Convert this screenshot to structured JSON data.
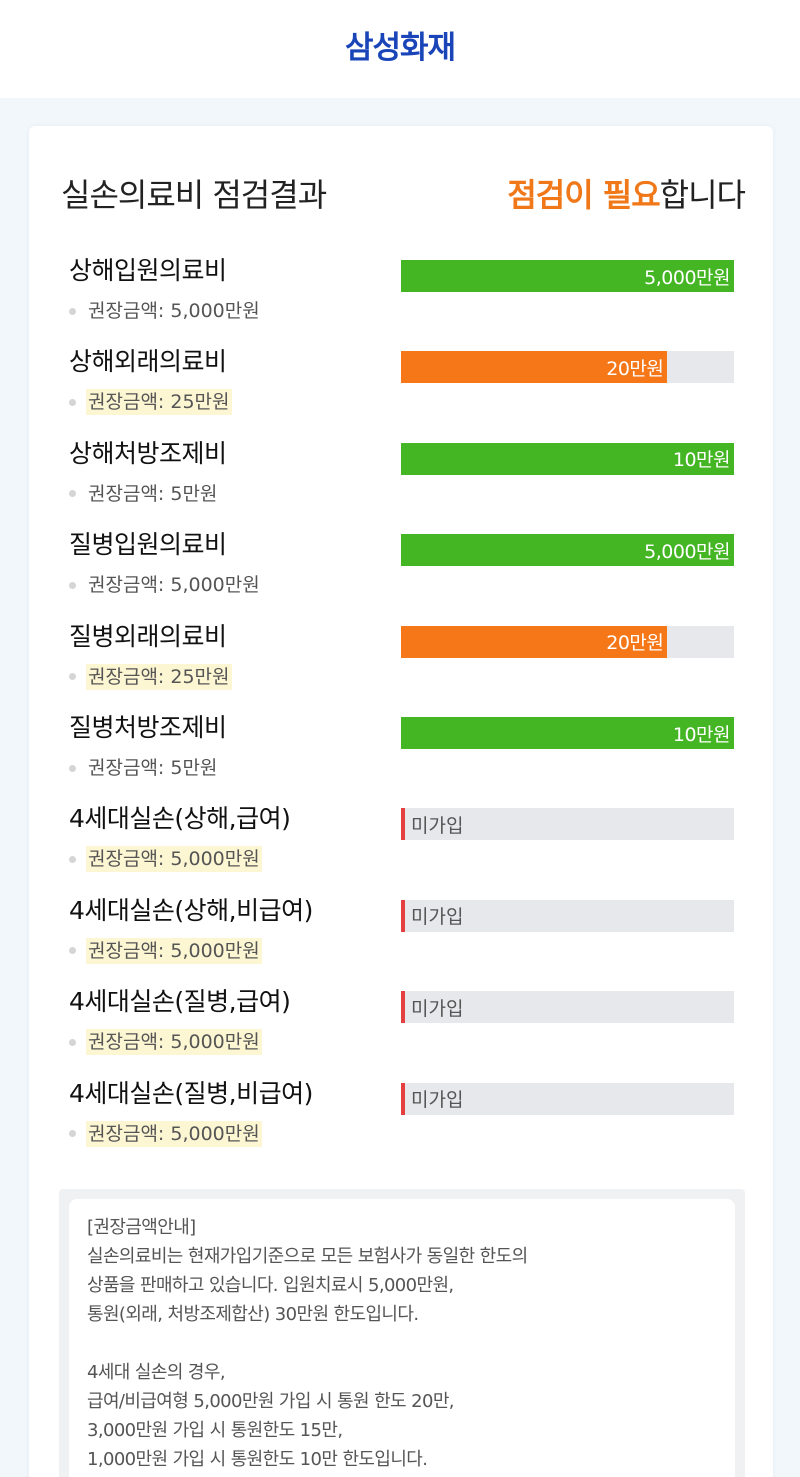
{
  "header": {
    "brand": "삼성화재"
  },
  "result": {
    "title": "실손의료비 점검결과",
    "status_accent": "점검이 필요",
    "status_suffix": "합니다"
  },
  "colors": {
    "brand": "#1a45b8",
    "ok": "#44b523",
    "warn": "#f57718",
    "missing": "#e54040",
    "accent": "#f07818"
  },
  "items": [
    {
      "name": "상해입원의료비",
      "rec": "권장금액: 5,000만원",
      "amount": "5,000만원",
      "status": "ok",
      "fill_ratio": 1.0,
      "highlight": false
    },
    {
      "name": "상해외래의료비",
      "rec": "권장금액: 25만원",
      "amount": "20만원",
      "status": "warn",
      "fill_ratio": 0.8,
      "highlight": true
    },
    {
      "name": "상해처방조제비",
      "rec": "권장금액: 5만원",
      "amount": "10만원",
      "status": "ok",
      "fill_ratio": 1.0,
      "highlight": false
    },
    {
      "name": "질병입원의료비",
      "rec": "권장금액: 5,000만원",
      "amount": "5,000만원",
      "status": "ok",
      "fill_ratio": 1.0,
      "highlight": false
    },
    {
      "name": "질병외래의료비",
      "rec": "권장금액: 25만원",
      "amount": "20만원",
      "status": "warn",
      "fill_ratio": 0.8,
      "highlight": true
    },
    {
      "name": "질병처방조제비",
      "rec": "권장금액: 5만원",
      "amount": "10만원",
      "status": "ok",
      "fill_ratio": 1.0,
      "highlight": false
    },
    {
      "name": "4세대실손(상해,급여)",
      "rec": "권장금액: 5,000만원",
      "amount": "미가입",
      "status": "none",
      "fill_ratio": 0,
      "highlight": true
    },
    {
      "name": "4세대실손(상해,비급여)",
      "rec": "권장금액: 5,000만원",
      "amount": "미가입",
      "status": "none",
      "fill_ratio": 0,
      "highlight": true
    },
    {
      "name": "4세대실손(질병,급여)",
      "rec": "권장금액: 5,000만원",
      "amount": "미가입",
      "status": "none",
      "fill_ratio": 0,
      "highlight": true
    },
    {
      "name": "4세대실손(질병,비급여)",
      "rec": "권장금액: 5,000만원",
      "amount": "미가입",
      "status": "none",
      "fill_ratio": 0,
      "highlight": true
    }
  ],
  "info": {
    "title": "[권장금액안내]",
    "para1": [
      "실손의료비는 현재가입기준으로 모든 보험사가 동일한 한도의",
      "상품을 판매하고 있습니다. 입원치료시 5,000만원,",
      "통원(외래, 처방조제합산) 30만원 한도입니다."
    ],
    "para2": [
      "4세대 실손의 경우,",
      "급여/비급여형 5,000만원 가입 시 통원 한도 20만,",
      "3,000만원 가입 시 통원한도 15만,",
      "1,000만원 가입 시 통원한도 10만 한도입니다."
    ]
  }
}
